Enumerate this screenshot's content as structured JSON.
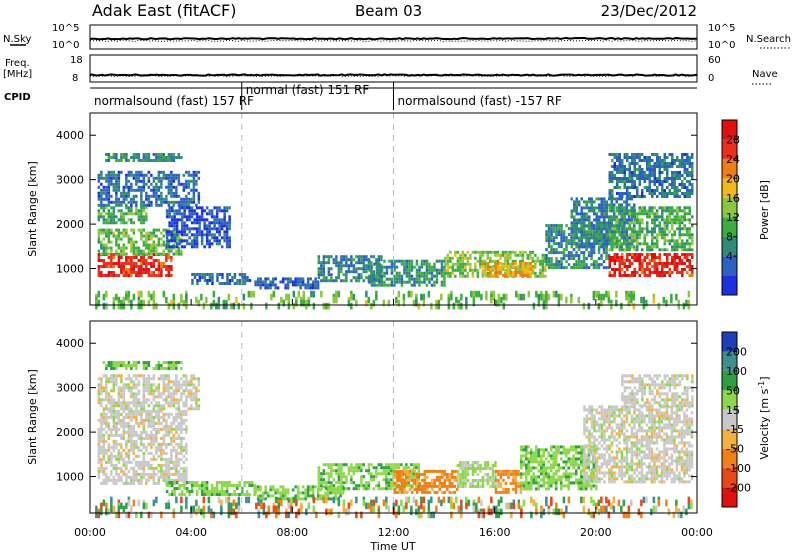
{
  "header": {
    "site": "Adak East (fitACF)",
    "beam": "Beam 03",
    "date": "23/Dec/2012"
  },
  "side_labels": {
    "nsky": "N.Sky",
    "freq_top": "Freq.",
    "freq_unit": "[MHz]",
    "cpid": "CPID",
    "nsearch": "N.Search",
    "nave": "Nave"
  },
  "strip_ticks": {
    "noise_left": [
      "10^5",
      "10^0"
    ],
    "noise_right": [
      "10^5",
      "10^0"
    ],
    "freq_left": [
      "18",
      "8"
    ],
    "nave_right": [
      "60",
      "0"
    ]
  },
  "cpid_modes": [
    {
      "label": "normalsound (fast) 157 RF",
      "start_hour": 0,
      "end_hour": 6
    },
    {
      "label": "normal (fast) 151 RF",
      "start_hour": 6,
      "end_hour": 12
    },
    {
      "label": "normalsound (fast) -157 RF",
      "start_hour": 12,
      "end_hour": 24
    }
  ],
  "colors": {
    "power": [
      "#1b31e0",
      "#2e60c4",
      "#2f8a7a",
      "#3cac3f",
      "#8cc63e",
      "#f2b81a",
      "#f07d12",
      "#e8301a",
      "#e01010"
    ],
    "velocity": [
      "#1f3fb8",
      "#3f8f8f",
      "#2fa042",
      "#8cd84a",
      "#c8c8c8",
      "#f4b040",
      "#f08018",
      "#e84818",
      "#e01010"
    ]
  },
  "chart_data": [
    {
      "type": "line",
      "title": "N.Sky / N.Search",
      "x_label": "Time UT",
      "x_range_hours": [
        0,
        24
      ],
      "y_scale": "log",
      "y_range": [
        1,
        100000
      ],
      "series": [
        {
          "name": "N.Sky",
          "x": [
            0,
            2,
            4,
            6,
            8,
            10,
            12,
            14,
            16,
            18,
            20,
            22,
            24
          ],
          "y": [
            200,
            210,
            220,
            230,
            210,
            200,
            210,
            220,
            220,
            230,
            240,
            230,
            220
          ]
        },
        {
          "name": "N.Search",
          "x": [
            0,
            4,
            8,
            12,
            16,
            20,
            24
          ],
          "y": [
            200,
            200,
            200,
            200,
            200,
            200,
            200
          ]
        }
      ]
    },
    {
      "type": "line",
      "title": "Freq. / Nave",
      "x_range_hours": [
        0,
        24
      ],
      "y_left_range_mhz": [
        8,
        18
      ],
      "y_right_range": [
        0,
        60
      ],
      "series": [
        {
          "name": "Freq.",
          "x": [
            0,
            6,
            12,
            18,
            24
          ],
          "y": [
            10.5,
            10.5,
            10.5,
            10.5,
            10.5
          ]
        },
        {
          "name": "Nave",
          "x": [
            0,
            6,
            12,
            18,
            24
          ],
          "y": [
            20,
            20,
            20,
            20,
            20
          ]
        }
      ]
    },
    {
      "type": "heatmap",
      "title": "Power",
      "xlabel": "Time UT",
      "ylabel": "Slant Range [km]",
      "x_ticks": [
        "00:00",
        "04:00",
        "08:00",
        "12:00",
        "16:00",
        "20:00",
        "00:00"
      ],
      "y_ticks": [
        1000,
        2000,
        3000,
        4000
      ],
      "y_range_km": [
        180,
        4500
      ],
      "colorbar_label": "Power [dB]",
      "colorbar_ticks": [
        4,
        8,
        12,
        16,
        20,
        24,
        28
      ],
      "colorbar_range": [
        0,
        32
      ],
      "regions": [
        {
          "t": [
            0.3,
            3.2
          ],
          "r": [
            850,
            1350
          ],
          "level": 28
        },
        {
          "t": [
            0.3,
            3.6
          ],
          "r": [
            1300,
            1900
          ],
          "level": 14
        },
        {
          "t": [
            0.3,
            2.2
          ],
          "r": [
            2000,
            2400
          ],
          "level": 12
        },
        {
          "t": [
            0.3,
            4.3
          ],
          "r": [
            2400,
            3200
          ],
          "level": 6
        },
        {
          "t": [
            0.5,
            3.6
          ],
          "r": [
            3450,
            3600
          ],
          "level": 9
        },
        {
          "t": [
            3.0,
            5.5
          ],
          "r": [
            1500,
            2400
          ],
          "level": 4
        },
        {
          "t": [
            4.0,
            6.3
          ],
          "r": [
            650,
            900
          ],
          "level": 6
        },
        {
          "t": [
            6.5,
            9.0
          ],
          "r": [
            550,
            800
          ],
          "level": 5
        },
        {
          "t": [
            9.0,
            11.5
          ],
          "r": [
            750,
            1300
          ],
          "level": 8
        },
        {
          "t": [
            11.0,
            14.0
          ],
          "r": [
            650,
            1200
          ],
          "level": 10
        },
        {
          "t": [
            14.0,
            18.0
          ],
          "r": [
            800,
            1400
          ],
          "level": 15
        },
        {
          "t": [
            15.5,
            17.5
          ],
          "r": [
            850,
            1150
          ],
          "level": 20
        },
        {
          "t": [
            18.0,
            20.5
          ],
          "r": [
            1000,
            2000
          ],
          "level": 9
        },
        {
          "t": [
            19.0,
            21.5
          ],
          "r": [
            1500,
            2600
          ],
          "level": 8
        },
        {
          "t": [
            20.5,
            23.8
          ],
          "r": [
            850,
            1350
          ],
          "level": 28
        },
        {
          "t": [
            20.5,
            23.8
          ],
          "r": [
            1400,
            2400
          ],
          "level": 12
        },
        {
          "t": [
            20.5,
            23.8
          ],
          "r": [
            2600,
            3600
          ],
          "level": 7
        },
        {
          "t": [
            0.2,
            23.8
          ],
          "r": [
            180,
            500
          ],
          "level": 14
        }
      ]
    },
    {
      "type": "heatmap",
      "title": "Velocity",
      "xlabel": "Time UT",
      "ylabel": "Slant Range [km]",
      "x_ticks": [
        "00:00",
        "04:00",
        "08:00",
        "12:00",
        "16:00",
        "20:00",
        "00:00"
      ],
      "y_ticks": [
        1000,
        2000,
        3000,
        4000
      ],
      "y_range_km": [
        180,
        4500
      ],
      "colorbar_label": "Velocity [m s^-1]",
      "colorbar_ticks": [
        "200",
        "100",
        "50",
        "15",
        "-15",
        "-50",
        "-100",
        "-200"
      ],
      "colorbar_range": [
        -250,
        250
      ],
      "regions": [
        {
          "t": [
            0.3,
            3.8
          ],
          "r": [
            850,
            2500
          ],
          "v": 0
        },
        {
          "t": [
            0.3,
            4.3
          ],
          "r": [
            2500,
            3300
          ],
          "v": 0
        },
        {
          "t": [
            0.5,
            3.6
          ],
          "r": [
            3450,
            3600
          ],
          "v": 40
        },
        {
          "t": [
            3.0,
            6.5
          ],
          "r": [
            600,
            900
          ],
          "v": 40
        },
        {
          "t": [
            6.5,
            10.0
          ],
          "r": [
            500,
            800
          ],
          "v": 40
        },
        {
          "t": [
            9.0,
            13.0
          ],
          "r": [
            750,
            1300
          ],
          "v": 40
        },
        {
          "t": [
            12.0,
            14.5
          ],
          "r": [
            650,
            1150
          ],
          "v": -60
        },
        {
          "t": [
            14.5,
            16.0
          ],
          "r": [
            750,
            1350
          ],
          "v": 20
        },
        {
          "t": [
            16.0,
            17.0
          ],
          "r": [
            650,
            1150
          ],
          "v": -60
        },
        {
          "t": [
            17.0,
            20.0
          ],
          "r": [
            750,
            1700
          ],
          "v": 40
        },
        {
          "t": [
            19.5,
            23.8
          ],
          "r": [
            850,
            2600
          ],
          "v": 0
        },
        {
          "t": [
            21.0,
            23.8
          ],
          "r": [
            2600,
            3300
          ],
          "v": 0
        },
        {
          "t": [
            0.2,
            23.8
          ],
          "r": [
            180,
            550
          ],
          "v": 0
        }
      ]
    }
  ],
  "axis_titles": {
    "x": "Time UT",
    "y_top": "Slant Range [km]",
    "y_bottom": "Slant Range [km]",
    "cb_power": "Power [dB]",
    "cb_velocity": "Velocity [m s",
    "cb_velocity_sup": "-1",
    "cb_velocity_end": "]"
  }
}
